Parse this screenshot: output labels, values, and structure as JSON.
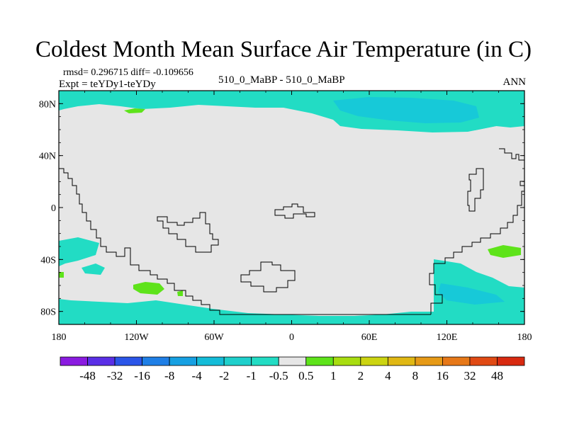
{
  "title": "Coldest Month Mean Surface Air Temperature (in C)",
  "stats_line": "rmsd= 0.296715 diff= -0.109656",
  "experiment": "Expt = teYDy1-teYDy",
  "case_label": "510_0_MaBP - 510_0_MaBP",
  "period": "ANN",
  "colors": {
    "background_fill": "#e6e6e6",
    "coastline": "#000000",
    "cool_light": "#22dcc4",
    "cool_medium": "#17c9d8",
    "warm_light": "#5ee31a"
  },
  "chart_data": {
    "type": "heatmap",
    "title": "Coldest Month Mean Surface Air Temperature (in C)",
    "xlabel": "",
    "ylabel": "",
    "xlim": [
      -180,
      180
    ],
    "ylim": [
      -90,
      90
    ],
    "x_ticks": [
      {
        "value": -180,
        "label": "180"
      },
      {
        "value": -120,
        "label": "120W"
      },
      {
        "value": -60,
        "label": "60W"
      },
      {
        "value": 0,
        "label": "0"
      },
      {
        "value": 60,
        "label": "60E"
      },
      {
        "value": 120,
        "label": "120E"
      },
      {
        "value": 180,
        "label": "180"
      }
    ],
    "y_ticks": [
      {
        "value": 80,
        "label": "80N"
      },
      {
        "value": 40,
        "label": "40N"
      },
      {
        "value": 0,
        "label": "0"
      },
      {
        "value": -40,
        "label": "40S"
      },
      {
        "value": -80,
        "label": "80S"
      }
    ],
    "colorbar": {
      "boundaries": [
        "-48",
        "-32",
        "-16",
        "-8",
        "-4",
        "-2",
        "-1",
        "-0.5",
        "0.5",
        "1",
        "2",
        "4",
        "8",
        "16",
        "32",
        "48"
      ],
      "colors": [
        "#8a1be0",
        "#5a2fe6",
        "#2b55e8",
        "#1f7fe6",
        "#16a0e2",
        "#14bcd8",
        "#1fd0cc",
        "#22dcc4",
        "#e6e6e6",
        "#5ee31a",
        "#a8dd10",
        "#ccd411",
        "#e0b814",
        "#e69a17",
        "#e67818",
        "#e04a14",
        "#d82a10"
      ]
    },
    "anomaly_regions": [
      {
        "class": "-1 to -0.5",
        "location": "Arctic band",
        "lon": [
          -180,
          180
        ],
        "lat": [
          73,
          90
        ]
      },
      {
        "class": "-1 to -0.5",
        "location": "North Pacific / Bering",
        "lon": [
          60,
          180
        ],
        "lat": [
          63,
          80
        ]
      },
      {
        "class": "-2 to -1",
        "location": "Siberian Arctic",
        "lon": [
          75,
          150
        ],
        "lat": [
          70,
          80
        ]
      },
      {
        "class": "0.5 to 1",
        "location": "Arctic Canada",
        "lon": [
          -140,
          -125
        ],
        "lat": [
          79,
          81
        ]
      },
      {
        "class": "-1 to -0.5",
        "location": "Southern Ocean band",
        "lon": [
          -180,
          180
        ],
        "lat": [
          -90,
          -75
        ]
      },
      {
        "class": "-1 to -0.5",
        "location": "South Pacific",
        "lon": [
          -180,
          -150
        ],
        "lat": [
          -70,
          -35
        ]
      },
      {
        "class": "-1 to -0.5",
        "location": "Australian sector",
        "lon": [
          110,
          180
        ],
        "lat": [
          -85,
          -43
        ]
      },
      {
        "class": "-2 to -1",
        "location": "South of Australia",
        "lon": [
          120,
          170
        ],
        "lat": [
          -72,
          -62
        ]
      },
      {
        "class": "0.5 to 1",
        "location": "South Pacific patch",
        "lon": [
          -120,
          -95
        ],
        "lat": [
          -65,
          -58
        ]
      },
      {
        "class": "0.5 to 1",
        "location": "Tasman Sea",
        "lon": [
          150,
          178
        ],
        "lat": [
          -38,
          -30
        ]
      }
    ]
  }
}
